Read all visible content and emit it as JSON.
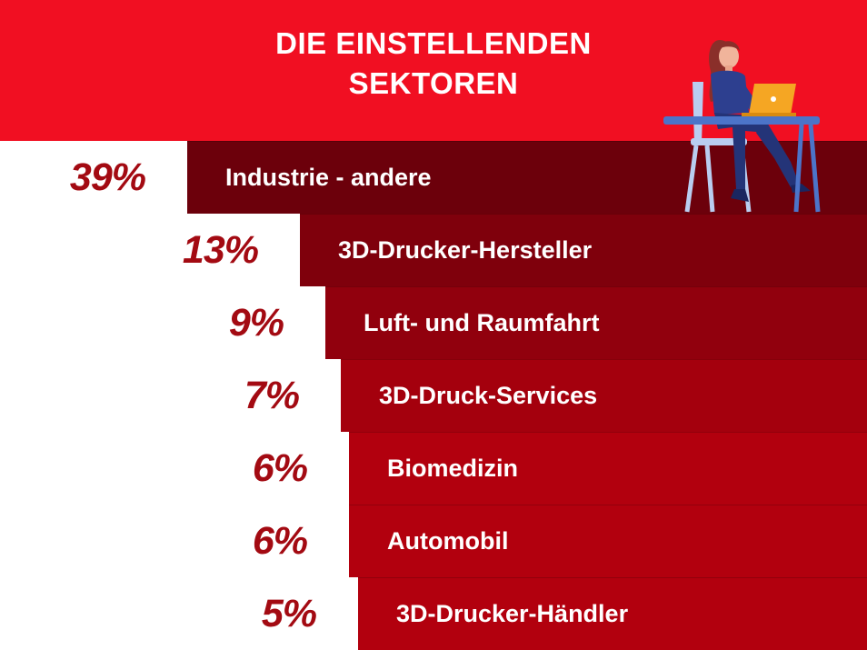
{
  "header": {
    "title_line1": "DIE EINSTELLENDEN",
    "title_line2": "SEKTOREN"
  },
  "colors": {
    "header_bg": "#f10f22",
    "percent_text": "#a30a12",
    "bar_dark": "#6c000b",
    "bar_light": "#b2000e"
  },
  "chart_data": {
    "type": "bar",
    "orientation": "horizontal",
    "categories": [
      "Industrie - andere",
      "3D-Drucker-Hersteller",
      "Luft- und Raumfahrt",
      "3D-Druck-Services",
      "Biomedizin",
      "Automobil",
      "3D-Drucker-Händler"
    ],
    "values": [
      39,
      13,
      9,
      7,
      6,
      6,
      5
    ],
    "value_labels": [
      "39%",
      "13%",
      "9%",
      "7%",
      "6%",
      "6%",
      "5%"
    ],
    "title": "DIE EINSTELLENDEN SEKTOREN",
    "xlabel": "",
    "ylabel": ""
  },
  "illustration": {
    "icon": "woman-at-laptop-icon"
  }
}
